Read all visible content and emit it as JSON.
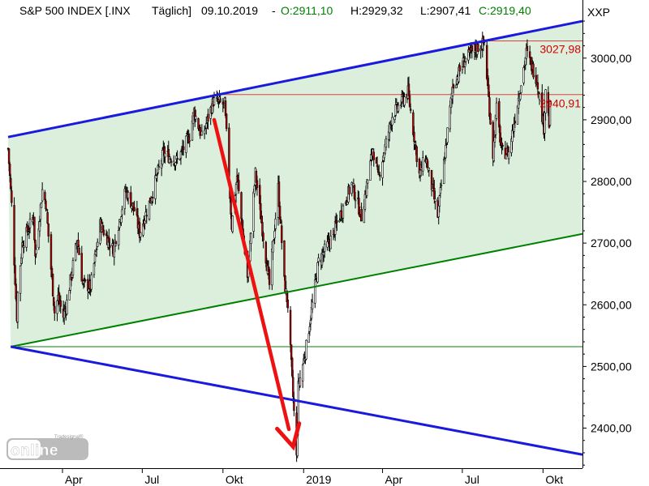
{
  "header": {
    "instrument": "S&P 500 INDEX [.INX",
    "interval": "Täglich]",
    "date": "09.10.2019",
    "sep": "-",
    "open": "O:2911,10",
    "high": "H:2929,32",
    "low": "L:2907,41",
    "close": "C:2919,40",
    "axis_code": "XXP"
  },
  "logo": {
    "small": "Tradesignal®",
    "main": "online"
  },
  "colors": {
    "upper_channel": "#1a1adc",
    "mid_channel": "#008000",
    "fill": "#dcefdc",
    "level_lines": "#e04040",
    "arrow": "#ee1111",
    "open_color": "#008000",
    "close_color": "#008000"
  },
  "chart_data": {
    "type": "candlestick",
    "ylim": [
      2335,
      3068
    ],
    "yticks": [
      2400,
      2500,
      2600,
      2700,
      2800,
      2900,
      3000
    ],
    "ytick_labels": [
      "2400,00",
      "2500,00",
      "2600,00",
      "2700,00",
      "2800,00",
      "2900,00",
      "3000,00"
    ],
    "xlim": [
      "2018-01-29",
      "2019-11-15"
    ],
    "xticks": [
      {
        "date": "2018-04-01",
        "label": "Apr"
      },
      {
        "date": "2018-07-01",
        "label": "Jul"
      },
      {
        "date": "2018-10-01",
        "label": "Okt"
      },
      {
        "date": "2019-01-01",
        "label": "2019"
      },
      {
        "date": "2019-04-01",
        "label": "Apr"
      },
      {
        "date": "2019-07-01",
        "label": "Jul"
      },
      {
        "date": "2019-10-01",
        "label": "Okt"
      }
    ],
    "levels": [
      {
        "value": 3027.98,
        "label": "3027,98",
        "from": "2019-07-26"
      },
      {
        "value": 2940.91,
        "label": "2940,91",
        "from": "2018-09-20"
      }
    ],
    "horizontal_support": {
      "value": 2532,
      "from": "2018-02-09"
    },
    "channel_upper": [
      {
        "date": "2018-01-29",
        "value": 2872
      },
      {
        "date": "2019-11-15",
        "value": 3060
      }
    ],
    "channel_middle": [
      {
        "date": "2018-02-01",
        "value": 2532
      },
      {
        "date": "2019-11-15",
        "value": 2715
      }
    ],
    "channel_lower": [
      {
        "date": "2018-02-01",
        "value": 2532
      },
      {
        "date": "2019-11-15",
        "value": 2357
      }
    ],
    "arrow": {
      "from": {
        "date": "2018-09-21",
        "value": 2900
      },
      "to": {
        "date": "2018-12-20",
        "value": 2370
      }
    },
    "price_path": [
      [
        "2018-01-29",
        2853
      ],
      [
        "2018-02-02",
        2762
      ],
      [
        "2018-02-08",
        2581
      ],
      [
        "2018-02-09",
        2619
      ],
      [
        "2018-02-14",
        2698
      ],
      [
        "2018-02-27",
        2744
      ],
      [
        "2018-03-01",
        2677
      ],
      [
        "2018-03-09",
        2786
      ],
      [
        "2018-03-13",
        2765
      ],
      [
        "2018-03-23",
        2588
      ],
      [
        "2018-03-27",
        2612
      ],
      [
        "2018-04-02",
        2581
      ],
      [
        "2018-04-06",
        2604
      ],
      [
        "2018-04-18",
        2708
      ],
      [
        "2018-04-24",
        2634
      ],
      [
        "2018-05-03",
        2629
      ],
      [
        "2018-05-14",
        2730
      ],
      [
        "2018-05-29",
        2689
      ],
      [
        "2018-06-12",
        2786
      ],
      [
        "2018-06-22",
        2754
      ],
      [
        "2018-06-28",
        2716
      ],
      [
        "2018-07-11",
        2774
      ],
      [
        "2018-07-25",
        2846
      ],
      [
        "2018-08-10",
        2833
      ],
      [
        "2018-08-24",
        2875
      ],
      [
        "2018-08-29",
        2914
      ],
      [
        "2018-09-07",
        2871
      ],
      [
        "2018-09-20",
        2930
      ],
      [
        "2018-10-03",
        2925
      ],
      [
        "2018-10-11",
        2728
      ],
      [
        "2018-10-17",
        2809
      ],
      [
        "2018-10-29",
        2641
      ],
      [
        "2018-11-07",
        2813
      ],
      [
        "2018-11-23",
        2632
      ],
      [
        "2018-12-03",
        2790
      ],
      [
        "2018-12-10",
        2637
      ],
      [
        "2018-12-14",
        2600
      ],
      [
        "2018-12-24",
        2351
      ],
      [
        "2018-12-26",
        2467
      ],
      [
        "2019-01-04",
        2532
      ],
      [
        "2019-01-18",
        2670
      ],
      [
        "2019-02-01",
        2706
      ],
      [
        "2019-02-25",
        2796
      ],
      [
        "2019-03-08",
        2743
      ],
      [
        "2019-03-21",
        2854
      ],
      [
        "2019-03-27",
        2805
      ],
      [
        "2019-04-12",
        2907
      ],
      [
        "2019-04-30",
        2945
      ],
      [
        "2019-05-13",
        2811
      ],
      [
        "2019-05-20",
        2840
      ],
      [
        "2019-06-03",
        2744
      ],
      [
        "2019-06-20",
        2954
      ],
      [
        "2019-07-03",
        2995
      ],
      [
        "2019-07-15",
        3014
      ],
      [
        "2019-07-26",
        3025
      ],
      [
        "2019-08-05",
        2844
      ],
      [
        "2019-08-09",
        2918
      ],
      [
        "2019-08-15",
        2847
      ],
      [
        "2019-08-23",
        2847
      ],
      [
        "2019-09-12",
        3009
      ],
      [
        "2019-09-24",
        2966
      ],
      [
        "2019-10-02",
        2887
      ],
      [
        "2019-10-04",
        2952
      ],
      [
        "2019-10-08",
        2893
      ],
      [
        "2019-10-09",
        2919
      ]
    ]
  }
}
